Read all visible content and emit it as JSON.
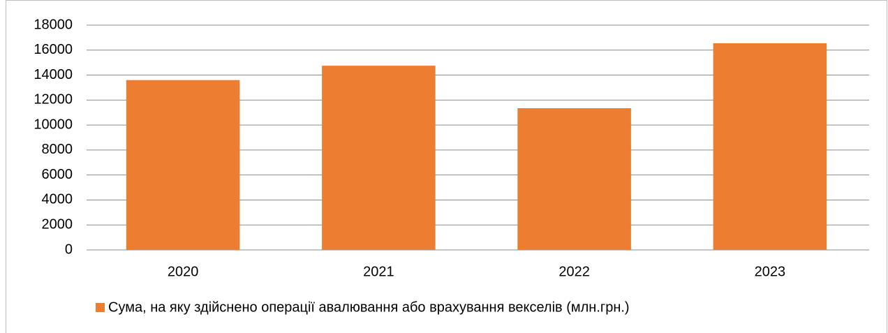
{
  "chart_data": {
    "type": "bar",
    "categories": [
      "2020",
      "2021",
      "2022",
      "2023"
    ],
    "series": [
      {
        "name": "Сума, на яку здійснено операції авалювання або врахування векселів (млн.грн.)",
        "color": "#ed7d31",
        "values": [
          13600,
          14750,
          11350,
          16550
        ]
      }
    ],
    "ylim": [
      0,
      18000
    ],
    "yticks": [
      0,
      2000,
      4000,
      6000,
      8000,
      10000,
      12000,
      14000,
      16000,
      18000
    ],
    "grid": true,
    "legend": "bottom"
  }
}
